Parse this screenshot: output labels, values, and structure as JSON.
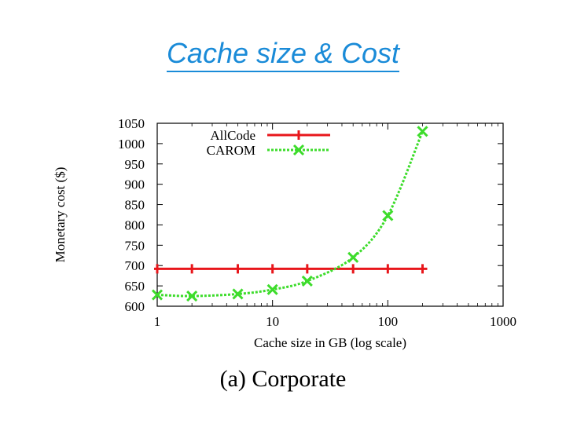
{
  "slide": {
    "title": "Cache size & Cost"
  },
  "caption": "(a)  Corporate",
  "chart_data": {
    "type": "line",
    "title": "",
    "xlabel": "Cache size in GB (log scale)",
    "ylabel": "Monetary cost ($)",
    "xscale": "log",
    "xlim": [
      1,
      1000
    ],
    "ylim": [
      600,
      1050
    ],
    "xticks": [
      1,
      10,
      100,
      1000
    ],
    "xtick_labels": [
      "1",
      "10",
      "100",
      "1000"
    ],
    "yticks": [
      600,
      650,
      700,
      750,
      800,
      850,
      900,
      950,
      1000,
      1050
    ],
    "ytick_labels": [
      "600",
      "650",
      "700",
      "750",
      "800",
      "850",
      "900",
      "950",
      "1000",
      "1050"
    ],
    "legend_position": "top-left",
    "grid": false,
    "series": [
      {
        "name": "AllCode",
        "color": "#e8161b",
        "style": "solid",
        "marker": "bar",
        "x": [
          1,
          2,
          5,
          10,
          20,
          50,
          100,
          200
        ],
        "y": [
          692,
          692,
          692,
          692,
          692,
          692,
          692,
          692
        ]
      },
      {
        "name": "CAROM",
        "color": "#3ddc2b",
        "style": "dotted",
        "marker": "x",
        "x": [
          1,
          2,
          5,
          10,
          20,
          50,
          100,
          200
        ],
        "y": [
          628,
          625,
          630,
          641,
          662,
          720,
          823,
          1030
        ]
      }
    ]
  }
}
